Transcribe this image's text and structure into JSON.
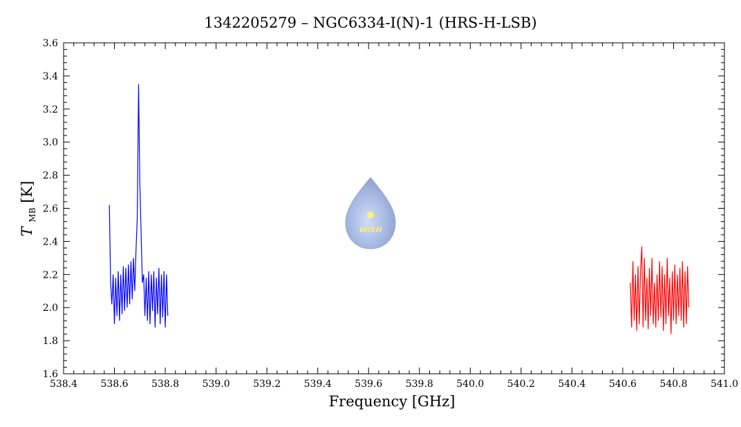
{
  "chart_data": {
    "type": "line",
    "title": "1342205279 – NGC6334-I(N)-1 (HRS-H-LSB)",
    "xlabel": "Frequency [GHz]",
    "ylabel_symbol": "T",
    "ylabel_subscript": "MB",
    "ylabel_unit": "[K]",
    "logo_text": "WISH",
    "xlim": [
      538.4,
      541.0
    ],
    "ylim": [
      1.6,
      3.6
    ],
    "xticks": [
      538.4,
      538.6,
      538.8,
      {
        "value": 539.0,
        "label": "539.0"
      },
      539.2,
      539.4,
      539.6,
      539.8,
      {
        "value": 540.0,
        "label": "540.0"
      },
      540.2,
      540.4,
      540.6,
      540.8,
      {
        "value": 541.0,
        "label": "541.0"
      }
    ],
    "yticks": [
      1.6,
      1.8,
      {
        "value": 2.0,
        "label": "2.0"
      },
      2.2,
      2.4,
      2.6,
      2.8,
      {
        "value": 3.0,
        "label": "3.0"
      },
      3.2,
      3.4,
      3.6
    ],
    "series": [
      {
        "color": "#0000ff",
        "x": [
          538.58,
          538.585,
          538.59,
          538.595,
          538.6,
          538.605,
          538.61,
          538.615,
          538.62,
          538.625,
          538.63,
          538.635,
          538.64,
          538.645,
          538.65,
          538.655,
          538.66,
          538.665,
          538.67,
          538.675,
          538.68,
          538.685,
          538.69,
          538.695,
          538.7,
          538.705,
          538.71,
          538.715,
          538.72,
          538.725,
          538.73,
          538.735,
          538.74,
          538.745,
          538.75,
          538.755,
          538.76,
          538.765,
          538.77,
          538.775,
          538.78,
          538.785,
          538.79,
          538.795,
          538.8,
          538.805,
          538.81
        ],
        "values": [
          2.62,
          2.15,
          2.02,
          2.2,
          1.9,
          2.18,
          1.95,
          2.22,
          1.92,
          2.2,
          1.96,
          2.25,
          1.98,
          2.24,
          2.0,
          2.26,
          2.02,
          2.28,
          2.05,
          2.3,
          2.1,
          2.35,
          2.55,
          3.35,
          2.75,
          2.45,
          2.15,
          2.2,
          1.95,
          2.18,
          1.92,
          2.22,
          1.9,
          2.2,
          1.98,
          2.22,
          1.88,
          2.18,
          1.96,
          2.24,
          1.9,
          2.2,
          1.94,
          2.22,
          1.88,
          2.2,
          1.95
        ]
      },
      {
        "color": "#ff0000",
        "x": [
          540.63,
          540.635,
          540.64,
          540.645,
          540.65,
          540.655,
          540.66,
          540.665,
          540.67,
          540.675,
          540.68,
          540.685,
          540.69,
          540.695,
          540.7,
          540.705,
          540.71,
          540.715,
          540.72,
          540.725,
          540.73,
          540.735,
          540.74,
          540.745,
          540.75,
          540.755,
          540.76,
          540.765,
          540.77,
          540.775,
          540.78,
          540.785,
          540.79,
          540.795,
          540.8,
          540.805,
          540.81,
          540.815,
          540.82,
          540.825,
          540.83,
          540.835,
          540.84,
          540.845,
          540.85,
          540.855,
          540.86
        ],
        "values": [
          2.15,
          1.88,
          2.28,
          1.92,
          2.2,
          1.86,
          2.25,
          1.9,
          2.22,
          2.37,
          1.88,
          2.3,
          1.92,
          2.18,
          1.87,
          2.24,
          1.95,
          2.3,
          1.9,
          2.15,
          1.88,
          2.2,
          1.92,
          2.28,
          1.94,
          2.25,
          1.86,
          2.2,
          1.9,
          2.3,
          1.95,
          2.18,
          1.84,
          2.22,
          1.92,
          2.26,
          1.9,
          2.2,
          1.95,
          2.24,
          1.92,
          2.28,
          1.88,
          2.22,
          1.9,
          2.25,
          2.0
        ]
      }
    ]
  }
}
